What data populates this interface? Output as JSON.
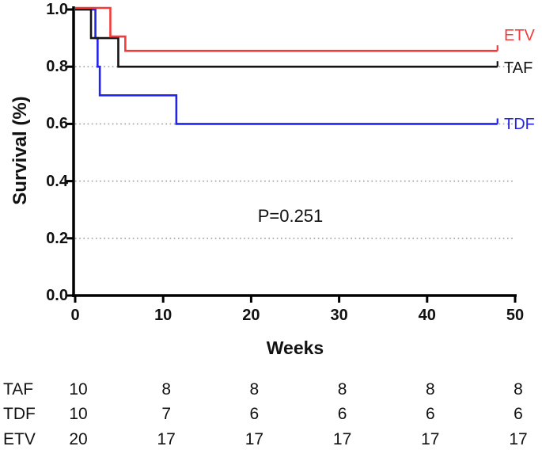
{
  "chart_data": {
    "type": "line",
    "subtype": "kaplan-meier-step",
    "title": "",
    "xlabel": "Weeks",
    "ylabel": "Survival (%)",
    "xlim": [
      0,
      50
    ],
    "ylim": [
      0.0,
      1.0
    ],
    "x_ticks": [
      0,
      10,
      20,
      30,
      40,
      50
    ],
    "y_ticks": [
      1.0,
      0.8,
      0.6,
      0.4,
      0.2,
      0.0
    ],
    "y_tick_labels": [
      "1.0",
      "0.8",
      "0.6",
      "0.4",
      "0.2",
      "0.0"
    ],
    "gridlines_y": [
      0.8,
      0.6,
      0.4,
      0.2
    ],
    "grid_on": true,
    "grid_color": "#8c8c8c",
    "axis_color": "#000000",
    "legend_position": "right-of-curves",
    "annotation": "P=0.251",
    "series": [
      {
        "name": "TDF",
        "color": "#2424e8",
        "final_value": 0.6,
        "steps": [
          [
            0,
            1.0
          ],
          [
            2.3,
            1.0
          ],
          [
            2.3,
            0.9
          ],
          [
            2.55,
            0.9
          ],
          [
            2.55,
            0.8
          ],
          [
            2.8,
            0.8
          ],
          [
            2.8,
            0.7
          ],
          [
            11.5,
            0.7
          ],
          [
            11.5,
            0.6
          ],
          [
            48,
            0.6
          ]
        ]
      },
      {
        "name": "TAF",
        "color": "#141414",
        "final_value": 0.8,
        "steps": [
          [
            0,
            1.0
          ],
          [
            1.8,
            1.0
          ],
          [
            1.8,
            0.9
          ],
          [
            4.9,
            0.9
          ],
          [
            4.9,
            0.8
          ],
          [
            48,
            0.8
          ]
        ]
      },
      {
        "name": "ETV",
        "color": "#f23b3b",
        "final_value": 0.85,
        "steps": [
          [
            0,
            1.0
          ],
          [
            4.0,
            1.0
          ],
          [
            4.0,
            0.9
          ],
          [
            5.7,
            0.9
          ],
          [
            5.7,
            0.85
          ],
          [
            48,
            0.85
          ]
        ]
      }
    ],
    "curve_labels": [
      {
        "text": "ETV",
        "color": "#f23b3b"
      },
      {
        "text": "TAF",
        "color": "#141414"
      },
      {
        "text": "TDF",
        "color": "#2424e8"
      }
    ],
    "risk_table": {
      "time_points": [
        0,
        10,
        20,
        30,
        40,
        50
      ],
      "rows": [
        {
          "label": "TAF",
          "values": [
            "10",
            "8",
            "8",
            "8",
            "8",
            "8"
          ]
        },
        {
          "label": "TDF",
          "values": [
            "10",
            "7",
            "6",
            "6",
            "6",
            "6"
          ]
        },
        {
          "label": "ETV",
          "values": [
            "20",
            "17",
            "17",
            "17",
            "17",
            "17"
          ]
        }
      ]
    }
  }
}
